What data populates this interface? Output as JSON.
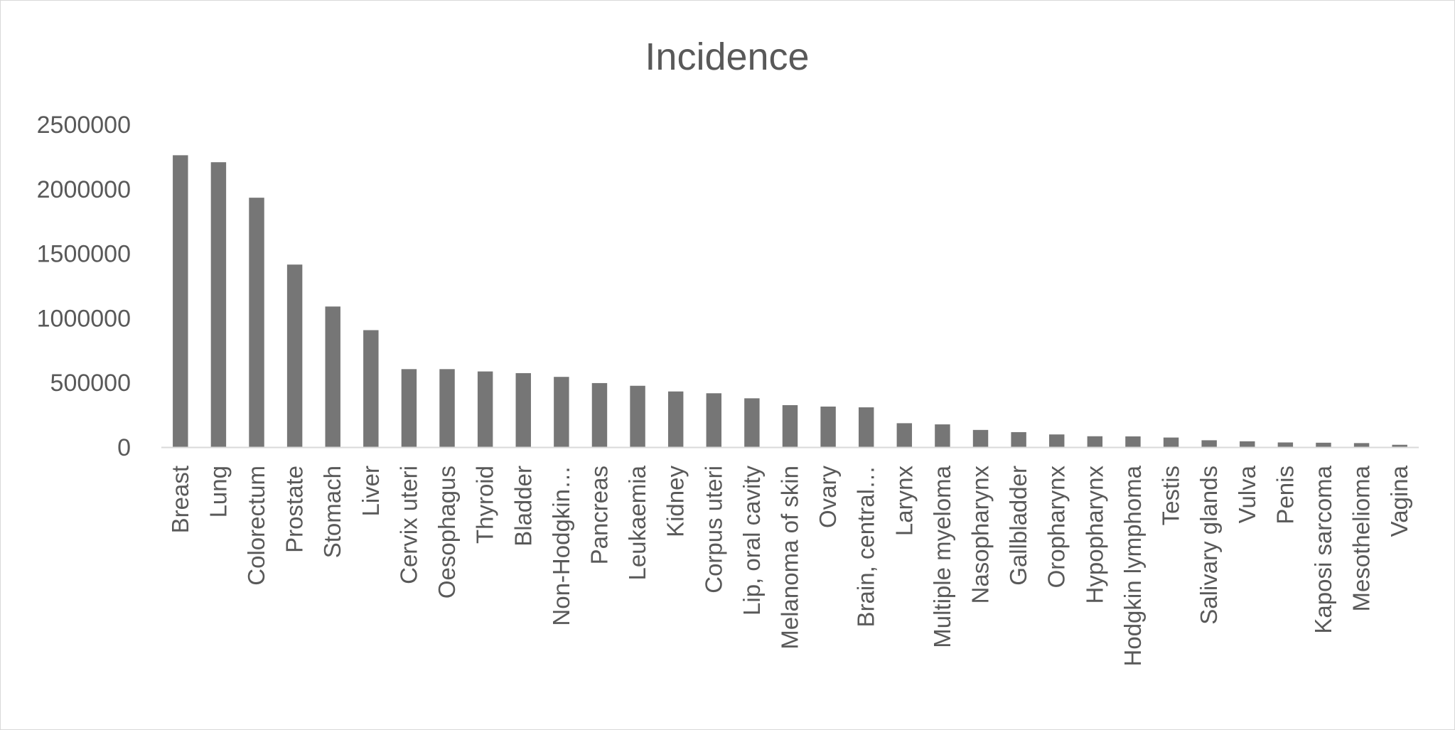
{
  "chart_data": {
    "type": "bar",
    "title": "Incidence",
    "xlabel": "",
    "ylabel": "",
    "ylim": [
      0,
      2500000
    ],
    "y_ticks": [
      "0",
      "500000",
      "1000000",
      "1500000",
      "2000000",
      "2500000"
    ],
    "grid": false,
    "legend": "none",
    "bar_color": "#767676",
    "axis_color": "#d9d9d9",
    "text_color": "#595959",
    "categories": [
      "Breast",
      "Lung",
      "Colorectum",
      "Prostate",
      "Stomach",
      "Liver",
      "Cervix uteri",
      "Oesophagus",
      "Thyroid",
      "Bladder",
      "Non-Hodgkin…",
      "Pancreas",
      "Leukaemia",
      "Kidney",
      "Corpus uteri",
      "Lip, oral cavity",
      "Melanoma of skin",
      "Ovary",
      "Brain, central…",
      "Larynx",
      "Multiple myeloma",
      "Nasopharynx",
      "Gallbladder",
      "Oropharynx",
      "Hypopharynx",
      "Hodgkin lymphoma",
      "Testis",
      "Salivary glands",
      "Vulva",
      "Penis",
      "Kaposi sarcoma",
      "Mesothelioma",
      "Vagina"
    ],
    "values": [
      2261000,
      2207000,
      1932000,
      1414000,
      1089000,
      906000,
      604000,
      604000,
      586000,
      573000,
      544000,
      496000,
      475000,
      431000,
      417000,
      378000,
      325000,
      314000,
      308000,
      185000,
      176000,
      133000,
      116000,
      98000,
      84000,
      83000,
      74000,
      53000,
      45000,
      36000,
      34000,
      31000,
      18000
    ]
  }
}
